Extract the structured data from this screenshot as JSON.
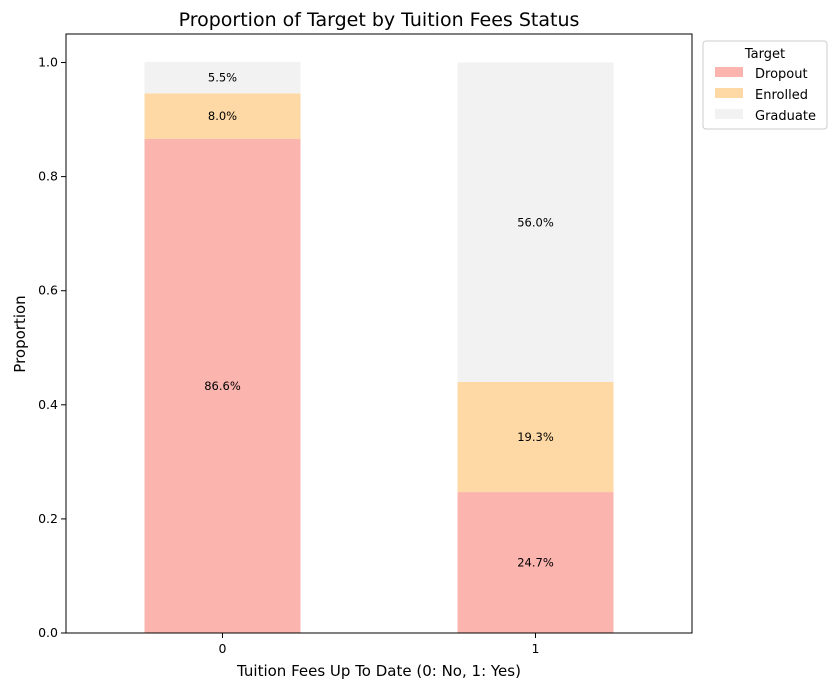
{
  "chart_data": {
    "type": "bar",
    "stacked": true,
    "title": "Proportion of Target by Tuition Fees Status",
    "xlabel": "Tuition Fees Up To Date (0: No, 1: Yes)",
    "ylabel": "Proportion",
    "categories": [
      "0",
      "1"
    ],
    "ylim": [
      0,
      1.05
    ],
    "yticks": [
      "0.0",
      "0.2",
      "0.4",
      "0.6",
      "0.8",
      "1.0"
    ],
    "legend": {
      "title": "Target",
      "placement": "outside-top-right"
    },
    "series": [
      {
        "name": "Dropout",
        "values": [
          0.866,
          0.247
        ],
        "labels": [
          "86.6%",
          "24.7%"
        ],
        "color": "#fbb4ae"
      },
      {
        "name": "Enrolled",
        "values": [
          0.08,
          0.193
        ],
        "labels": [
          "8.0%",
          "19.3%"
        ],
        "color": "#fed9a6"
      },
      {
        "name": "Graduate",
        "values": [
          0.055,
          0.56
        ],
        "labels": [
          "5.5%",
          "56.0%"
        ],
        "color": "#f2f2f2"
      }
    ],
    "grid": false
  }
}
